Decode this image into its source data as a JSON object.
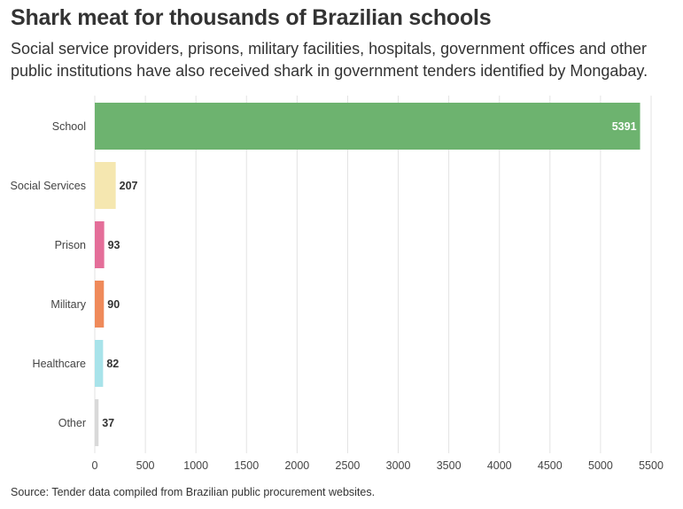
{
  "title": "Shark meat for thousands of Brazilian schools",
  "subtitle": "Social service providers, prisons, military facilities, hospitals, government offices and other public institutions have also received shark in government tenders identified by Mongabay.",
  "source": "Source: Tender data compiled from Brazilian public procurement websites.",
  "chart_data": {
    "type": "bar",
    "orientation": "horizontal",
    "categories": [
      "School",
      "Social Services",
      "Prison",
      "Military",
      "Healthcare",
      "Other"
    ],
    "values": [
      5391,
      207,
      93,
      90,
      82,
      37
    ],
    "value_labels": [
      "5391",
      "207",
      "93",
      "90",
      "82",
      "37"
    ],
    "colors": [
      "#6db36f",
      "#f5e7b0",
      "#e46e99",
      "#ef8a5a",
      "#a8e3ea",
      "#d9d9d9"
    ],
    "xlim": [
      0,
      5500
    ],
    "xticks": [
      0,
      500,
      1000,
      1500,
      2000,
      2500,
      3000,
      3500,
      4000,
      4500,
      5000,
      5500
    ],
    "xtick_labels": [
      "0",
      "500",
      "1000",
      "1500",
      "2000",
      "2500",
      "3000",
      "3500",
      "4000",
      "4500",
      "5000",
      "5500"
    ],
    "grid": "vertical",
    "xlabel": "",
    "ylabel": ""
  }
}
